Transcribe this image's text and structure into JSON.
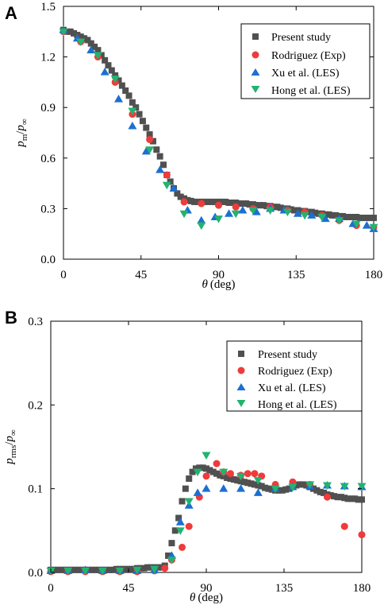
{
  "chart_data": [
    {
      "panel": "A",
      "type": "scatter",
      "xlabel": "θ (deg)",
      "ylabel": "p_m/p_∞",
      "xlim": [
        0,
        180
      ],
      "ylim": [
        0,
        1.5
      ],
      "xticks": [
        "0",
        "45",
        "90",
        "135",
        "180"
      ],
      "yticks": [
        "0.0",
        "0.3",
        "0.6",
        "0.9",
        "1.2",
        "1.5"
      ],
      "legend_position": "top-right",
      "series": [
        {
          "name": "Present study",
          "marker": "square",
          "color": "#505050",
          "x": [
            0,
            2,
            4,
            6,
            8,
            10,
            12,
            14,
            16,
            18,
            20,
            22,
            24,
            26,
            28,
            30,
            32,
            34,
            36,
            38,
            40,
            42,
            44,
            46,
            48,
            50,
            52,
            54,
            56,
            58,
            60,
            62,
            64,
            66,
            68,
            70,
            72,
            74,
            76,
            78,
            80,
            82,
            84,
            86,
            88,
            90,
            92,
            94,
            96,
            98,
            100,
            102,
            104,
            106,
            108,
            110,
            112,
            114,
            116,
            118,
            120,
            122,
            124,
            126,
            128,
            130,
            132,
            134,
            136,
            138,
            140,
            142,
            144,
            146,
            148,
            150,
            152,
            154,
            156,
            158,
            160,
            162,
            164,
            166,
            168,
            170,
            172,
            174,
            176,
            178,
            180
          ],
          "y": [
            1.36,
            1.35,
            1.35,
            1.34,
            1.33,
            1.32,
            1.31,
            1.3,
            1.28,
            1.26,
            1.24,
            1.21,
            1.18,
            1.15,
            1.12,
            1.09,
            1.06,
            1.03,
            1.0,
            0.97,
            0.93,
            0.9,
            0.86,
            0.82,
            0.78,
            0.74,
            0.7,
            0.65,
            0.61,
            0.56,
            0.5,
            0.46,
            0.42,
            0.39,
            0.37,
            0.36,
            0.35,
            0.345,
            0.34,
            0.34,
            0.34,
            0.34,
            0.34,
            0.34,
            0.34,
            0.34,
            0.34,
            0.34,
            0.335,
            0.335,
            0.335,
            0.33,
            0.33,
            0.33,
            0.325,
            0.325,
            0.32,
            0.32,
            0.32,
            0.315,
            0.315,
            0.31,
            0.31,
            0.305,
            0.3,
            0.3,
            0.295,
            0.29,
            0.29,
            0.285,
            0.285,
            0.28,
            0.28,
            0.275,
            0.27,
            0.27,
            0.265,
            0.265,
            0.26,
            0.26,
            0.255,
            0.255,
            0.25,
            0.25,
            0.25,
            0.25,
            0.245,
            0.245,
            0.245,
            0.245,
            0.245
          ]
        },
        {
          "name": "Rodriguez (Exp)",
          "marker": "circle",
          "color": "#ee3b3b",
          "x": [
            0,
            10,
            20,
            30,
            40,
            50,
            60,
            70,
            80,
            90,
            100,
            110,
            120,
            130,
            140,
            150,
            160,
            170,
            180
          ],
          "y": [
            1.35,
            1.29,
            1.2,
            1.05,
            0.86,
            0.71,
            0.5,
            0.34,
            0.33,
            0.32,
            0.31,
            0.3,
            0.31,
            0.29,
            0.28,
            0.26,
            0.23,
            0.2,
            0.19
          ]
        },
        {
          "name": "Xu et al. (LES)",
          "marker": "triangle-up",
          "color": "#1c6fd1",
          "x": [
            0,
            8,
            16,
            24,
            32,
            40,
            48,
            56,
            64,
            72,
            80,
            88,
            96,
            104,
            112,
            120,
            128,
            136,
            144,
            152,
            160,
            168,
            176,
            180
          ],
          "y": [
            1.36,
            1.31,
            1.24,
            1.11,
            0.95,
            0.79,
            0.64,
            0.53,
            0.42,
            0.29,
            0.23,
            0.25,
            0.27,
            0.29,
            0.28,
            0.3,
            0.29,
            0.27,
            0.26,
            0.24,
            0.24,
            0.21,
            0.2,
            0.18
          ]
        },
        {
          "name": "Hong et al. (LES)",
          "marker": "triangle-down",
          "color": "#22b370",
          "x": [
            0,
            10,
            20,
            30,
            40,
            50,
            60,
            70,
            80,
            90,
            100,
            110,
            120,
            130,
            140,
            150,
            160,
            170,
            180
          ],
          "y": [
            1.35,
            1.29,
            1.21,
            1.07,
            0.88,
            0.65,
            0.44,
            0.27,
            0.2,
            0.24,
            0.27,
            0.29,
            0.29,
            0.28,
            0.26,
            0.25,
            0.23,
            0.21,
            0.19
          ]
        }
      ]
    },
    {
      "panel": "B",
      "type": "scatter",
      "xlabel": "θ (deg)",
      "ylabel": "p_rms/p_∞",
      "xlim": [
        0,
        180
      ],
      "ylim": [
        0,
        0.3
      ],
      "xticks": [
        "0",
        "45",
        "90",
        "135",
        "180"
      ],
      "yticks": [
        "0.0",
        "0.1",
        "0.2",
        "0.3"
      ],
      "legend_position": "top-right",
      "series": [
        {
          "name": "Present study",
          "marker": "square",
          "color": "#505050",
          "x": [
            0,
            2,
            4,
            6,
            8,
            10,
            12,
            14,
            16,
            18,
            20,
            22,
            24,
            26,
            28,
            30,
            32,
            34,
            36,
            38,
            40,
            42,
            44,
            46,
            48,
            50,
            52,
            54,
            56,
            58,
            60,
            62,
            64,
            66,
            68,
            70,
            72,
            74,
            76,
            78,
            80,
            82,
            84,
            86,
            88,
            90,
            92,
            94,
            96,
            98,
            100,
            102,
            104,
            106,
            108,
            110,
            112,
            114,
            116,
            118,
            120,
            122,
            124,
            126,
            128,
            130,
            132,
            134,
            136,
            138,
            140,
            142,
            144,
            146,
            148,
            150,
            152,
            154,
            156,
            158,
            160,
            162,
            164,
            166,
            168,
            170,
            172,
            174,
            176,
            178,
            180
          ],
          "y": [
            0.003,
            0.003,
            0.003,
            0.003,
            0.003,
            0.003,
            0.003,
            0.003,
            0.003,
            0.003,
            0.003,
            0.003,
            0.003,
            0.003,
            0.003,
            0.003,
            0.003,
            0.003,
            0.003,
            0.004,
            0.004,
            0.004,
            0.004,
            0.004,
            0.004,
            0.005,
            0.005,
            0.005,
            0.006,
            0.006,
            0.006,
            0.006,
            0.006,
            0.008,
            0.02,
            0.035,
            0.05,
            0.065,
            0.085,
            0.1,
            0.112,
            0.12,
            0.124,
            0.125,
            0.125,
            0.124,
            0.122,
            0.12,
            0.118,
            0.116,
            0.115,
            0.113,
            0.112,
            0.111,
            0.11,
            0.109,
            0.108,
            0.107,
            0.106,
            0.105,
            0.104,
            0.103,
            0.101,
            0.1,
            0.099,
            0.098,
            0.098,
            0.098,
            0.099,
            0.1,
            0.102,
            0.104,
            0.105,
            0.105,
            0.104,
            0.102,
            0.1,
            0.098,
            0.096,
            0.095,
            0.093,
            0.092,
            0.091,
            0.09,
            0.09,
            0.089,
            0.088,
            0.088,
            0.088,
            0.087,
            0.087
          ]
        },
        {
          "name": "Rodriguez (Exp)",
          "marker": "circle",
          "color": "#ee3b3b",
          "x": [
            0,
            10,
            20,
            30,
            40,
            50,
            60,
            66,
            70,
            76,
            80,
            86,
            90,
            96,
            100,
            104,
            110,
            114,
            118,
            122,
            130,
            140,
            150,
            160,
            170,
            180
          ],
          "y": [
            0.001,
            0.001,
            0.001,
            0.001,
            0.001,
            0.001,
            0.002,
            0.005,
            0.015,
            0.03,
            0.055,
            0.09,
            0.115,
            0.13,
            0.12,
            0.118,
            0.116,
            0.118,
            0.118,
            0.115,
            0.105,
            0.108,
            0.105,
            0.09,
            0.055,
            0.045
          ]
        },
        {
          "name": "Xu et al. (LES)",
          "marker": "triangle-up",
          "color": "#1c6fd1",
          "x": [
            0,
            10,
            20,
            30,
            40,
            50,
            60,
            70,
            75,
            80,
            85,
            90,
            100,
            110,
            120,
            130,
            140,
            150,
            160,
            170,
            180
          ],
          "y": [
            0.002,
            0.002,
            0.003,
            0.002,
            0.002,
            0.002,
            0.003,
            0.02,
            0.06,
            0.08,
            0.095,
            0.1,
            0.1,
            0.1,
            0.095,
            0.1,
            0.102,
            0.103,
            0.104,
            0.103,
            0.102
          ]
        },
        {
          "name": "Hong et al. (LES)",
          "marker": "triangle-down",
          "color": "#22b370",
          "x": [
            0,
            10,
            20,
            30,
            40,
            50,
            60,
            70,
            75,
            80,
            85,
            90,
            100,
            110,
            120,
            130,
            140,
            150,
            160,
            170,
            180
          ],
          "y": [
            0.002,
            0.002,
            0.002,
            0.002,
            0.002,
            0.003,
            0.004,
            0.015,
            0.05,
            0.085,
            0.12,
            0.14,
            0.12,
            0.115,
            0.11,
            0.1,
            0.102,
            0.105,
            0.104,
            0.103,
            0.103
          ]
        }
      ]
    }
  ],
  "panels": {
    "a": {
      "letter": "A",
      "legend": [
        "Present study",
        "Rodriguez (Exp)",
        "Xu et al. (LES)",
        "Hong et al. (LES)"
      ],
      "xtitle_symbol": "θ",
      "xtitle_unit": "(deg)",
      "ytitle_sym": "p",
      "ytitle_sub": "m",
      "ytitle_sep": "/",
      "ytitle_sym2": "p",
      "ytitle_sub2": "∞"
    },
    "b": {
      "letter": "B",
      "legend": [
        "Present study",
        "Rodriguez (Exp)",
        "Xu et al. (LES)",
        "Hong et al. (LES)"
      ],
      "xtitle_symbol": "θ",
      "xtitle_unit": "(deg)",
      "ytitle_sym": "p",
      "ytitle_sub": "rms",
      "ytitle_sep": "/",
      "ytitle_sym2": "p",
      "ytitle_sub2": "∞"
    }
  },
  "colors": {
    "present": "#505050",
    "rodriguez": "#ee3b3b",
    "xu": "#1c6fd1",
    "hong": "#22b370"
  }
}
